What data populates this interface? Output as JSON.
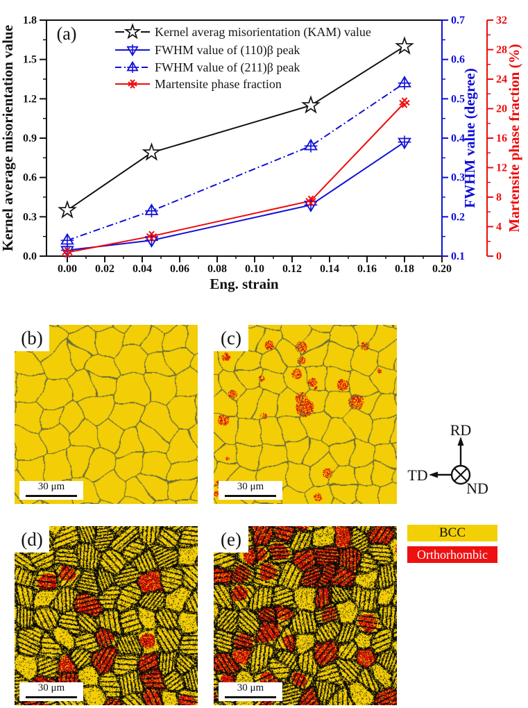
{
  "chart_data": {
    "type": "line",
    "panel_label": "(a)",
    "title": "",
    "xlabel": "Eng. strain",
    "x_range": [
      -0.0111,
      0.2
    ],
    "x_ticks": [
      0.0,
      0.02,
      0.04,
      0.06,
      0.08,
      0.1,
      0.12,
      0.14,
      0.16,
      0.18,
      0.2
    ],
    "x_minor_step": 0.01,
    "x_tick_decimals": 2,
    "grid": false,
    "legend_position": "top-left-inside",
    "axes": {
      "left": {
        "label": "Kernel average misorientation value",
        "range": [
          0.0,
          1.8
        ],
        "tick_step": 0.3,
        "minor_step": 0.15,
        "decimals": 1,
        "color": "#111111"
      },
      "right_inner": {
        "label": "FWHM value (degree)",
        "range": [
          0.1,
          0.7
        ],
        "tick_step": 0.1,
        "minor_step": 0.05,
        "decimals": 1,
        "color": "#0f0fd8"
      },
      "right_outer": {
        "label": "Martensite phase fraction (%)",
        "range": [
          0,
          32
        ],
        "tick_step": 4,
        "minor_step": 2,
        "decimals": 0,
        "color": "#ee0b0b"
      }
    },
    "x": [
      0.0,
      0.045,
      0.13,
      0.18
    ],
    "series": [
      {
        "name": "Kernel averag misorientation (KAM) value",
        "axis": "left",
        "color": "#111111",
        "marker": "star",
        "line": "solid",
        "legend_gaps": true,
        "values": [
          0.35,
          0.79,
          1.15,
          1.6
        ]
      },
      {
        "name": "FWHM value of (110)β peak",
        "axis": "right_inner",
        "color": "#0f0fd8",
        "marker": "tri-down",
        "line": "solid",
        "legend_gaps": false,
        "values": [
          0.115,
          0.14,
          0.23,
          0.39
        ]
      },
      {
        "name": "FWHM value of (211)β peak",
        "axis": "right_inner",
        "color": "#0f0fd8",
        "marker": "tri-up",
        "line": "dashdot",
        "legend_gaps": false,
        "values": [
          0.14,
          0.215,
          0.38,
          0.54
        ]
      },
      {
        "name": "Martensite phase fraction",
        "axis": "right_outer",
        "color": "#ee0b0b",
        "marker": "double-x",
        "line": "solid",
        "legend_gaps": false,
        "values": [
          0.5,
          2.7,
          7.5,
          20.8
        ]
      }
    ]
  },
  "micrographs": {
    "colors": {
      "bcc": "#f3ce06",
      "orthorhombic": "#d90a05",
      "boundary": "#6e6e37",
      "deformation": "#0d0d08"
    },
    "panels": [
      {
        "id": "b",
        "label": "(b)",
        "scale_bar_label": "30 μm",
        "render": {
          "seed": 11,
          "grain": 37,
          "deformed": false,
          "clusters": 0,
          "bandProb": 0,
          "redCellProb": 0,
          "speckle": 0
        }
      },
      {
        "id": "c",
        "label": "(c)",
        "scale_bar_label": "30 μm",
        "render": {
          "seed": 23,
          "grain": 33,
          "deformed": false,
          "clusters": 24,
          "bandProb": 0,
          "redCellProb": 0,
          "speckle": 0
        }
      },
      {
        "id": "d",
        "label": "(d)",
        "scale_bar_label": "30 μm",
        "render": {
          "seed": 37,
          "grain": 30,
          "deformed": true,
          "clusters": 0,
          "bandProb": 0.8,
          "redCellProb": 0.22,
          "speckle": 0.1
        }
      },
      {
        "id": "e",
        "label": "(e)",
        "scale_bar_label": "30 μm",
        "render": {
          "seed": 51,
          "grain": 29,
          "deformed": true,
          "clusters": 0,
          "bandProb": 0.82,
          "redCellProb": 0.45,
          "speckle": 0.12
        }
      }
    ]
  },
  "orientation_indicator": {
    "rd": "RD",
    "td": "TD",
    "nd": "ND"
  },
  "phase_legend": {
    "items": [
      {
        "label": "BCC",
        "bg": "#f2d005",
        "fg": "#111111"
      },
      {
        "label": "Orthorhombic",
        "bg": "#ee1111",
        "fg": "#ffffff"
      }
    ]
  }
}
